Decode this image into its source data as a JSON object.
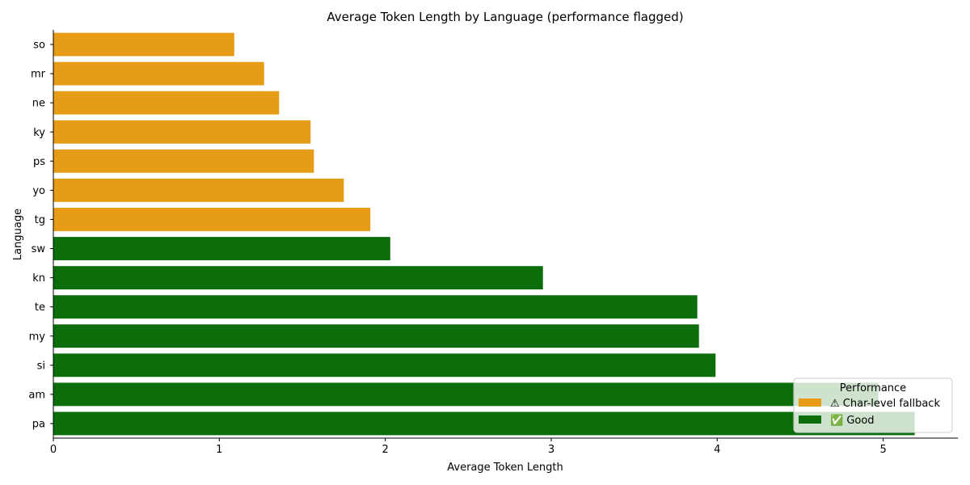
{
  "chart_data": {
    "type": "bar",
    "orientation": "horizontal",
    "title": "Average Token Length by Language (performance flagged)",
    "xlabel": "Average Token Length",
    "ylabel": "Language",
    "categories": [
      "so",
      "mr",
      "ne",
      "ky",
      "ps",
      "yo",
      "tg",
      "sw",
      "kn",
      "te",
      "my",
      "si",
      "am",
      "pa"
    ],
    "values": [
      1.09,
      1.27,
      1.36,
      1.55,
      1.57,
      1.75,
      1.91,
      2.03,
      2.95,
      3.88,
      3.89,
      3.99,
      4.97,
      5.19
    ],
    "groups": [
      "fallback",
      "fallback",
      "fallback",
      "fallback",
      "fallback",
      "fallback",
      "fallback",
      "good",
      "good",
      "good",
      "good",
      "good",
      "good",
      "good"
    ],
    "xlim": [
      0,
      5.45
    ],
    "xticks": [
      0,
      1,
      2,
      3,
      4,
      5
    ],
    "grid": false,
    "legend": {
      "title": "Performance",
      "placement": "lower-right",
      "entries": [
        {
          "key": "fallback",
          "label": "⚠ Char-level fallback",
          "color": "#e69c17"
        },
        {
          "key": "good",
          "label": "✅ Good",
          "color": "#0b6e0b"
        }
      ]
    }
  }
}
